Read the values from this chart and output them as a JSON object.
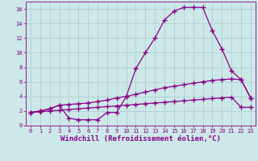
{
  "xlabel": "Windchill (Refroidissement éolien,°C)",
  "bg_color": "#cde8e8",
  "line_color": "#880088",
  "xlim": [
    -0.5,
    23.5
  ],
  "ylim": [
    0,
    17
  ],
  "xticks": [
    0,
    1,
    2,
    3,
    4,
    5,
    6,
    7,
    8,
    9,
    10,
    11,
    12,
    13,
    14,
    15,
    16,
    17,
    18,
    19,
    20,
    21,
    22,
    23
  ],
  "yticks": [
    0,
    2,
    4,
    6,
    8,
    10,
    12,
    14,
    16
  ],
  "line_top_x": [
    0,
    1,
    2,
    3,
    4,
    5,
    6,
    7,
    8,
    9,
    10,
    11,
    12,
    13,
    14,
    15,
    16,
    17,
    18,
    19,
    20,
    21,
    22,
    23
  ],
  "line_top_y": [
    1.8,
    2.0,
    2.3,
    2.8,
    1.0,
    0.8,
    0.8,
    0.8,
    1.8,
    1.8,
    4.0,
    7.8,
    10.0,
    12.0,
    14.5,
    15.7,
    16.2,
    16.2,
    16.2,
    13.0,
    10.5,
    7.5,
    6.3,
    3.8
  ],
  "line_mid_x": [
    0,
    1,
    2,
    3,
    4,
    5,
    6,
    7,
    8,
    9,
    10,
    11,
    12,
    13,
    14,
    15,
    16,
    17,
    18,
    19,
    20,
    21,
    22,
    23
  ],
  "line_mid_y": [
    1.8,
    2.0,
    2.3,
    2.8,
    2.9,
    3.0,
    3.1,
    3.3,
    3.5,
    3.8,
    4.0,
    4.3,
    4.6,
    4.9,
    5.2,
    5.4,
    5.6,
    5.8,
    6.0,
    6.2,
    6.3,
    6.4,
    6.3,
    3.8
  ],
  "line_bot_x": [
    0,
    1,
    2,
    3,
    4,
    5,
    6,
    7,
    8,
    9,
    10,
    11,
    12,
    13,
    14,
    15,
    16,
    17,
    18,
    19,
    20,
    21,
    22,
    23
  ],
  "line_bot_y": [
    1.8,
    1.9,
    2.0,
    2.1,
    2.2,
    2.3,
    2.4,
    2.5,
    2.6,
    2.7,
    2.8,
    2.9,
    3.0,
    3.1,
    3.2,
    3.3,
    3.4,
    3.5,
    3.6,
    3.7,
    3.8,
    3.9,
    2.5,
    2.5
  ],
  "marker": "+",
  "markersize": 4,
  "markeredgewidth": 1.0,
  "linewidth": 0.9,
  "tick_labelsize": 5,
  "xlabel_fontsize": 6.5,
  "grid_color": "#aacccc",
  "grid_linewidth": 0.5,
  "grid_alpha": 1.0
}
